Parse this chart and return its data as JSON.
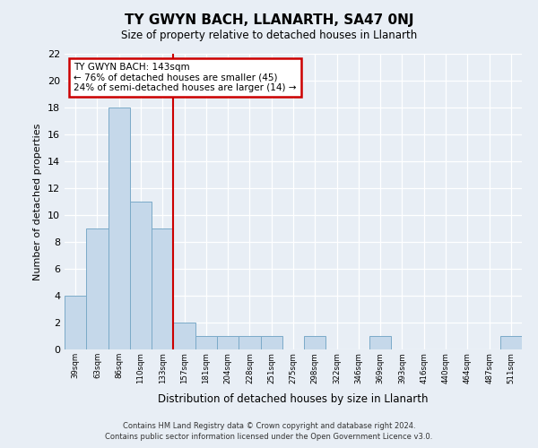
{
  "title": "TY GWYN BACH, LLANARTH, SA47 0NJ",
  "subtitle": "Size of property relative to detached houses in Llanarth",
  "xlabel": "Distribution of detached houses by size in Llanarth",
  "ylabel": "Number of detached properties",
  "bar_labels": [
    "39sqm",
    "63sqm",
    "86sqm",
    "110sqm",
    "133sqm",
    "157sqm",
    "181sqm",
    "204sqm",
    "228sqm",
    "251sqm",
    "275sqm",
    "298sqm",
    "322sqm",
    "346sqm",
    "369sqm",
    "393sqm",
    "416sqm",
    "440sqm",
    "464sqm",
    "487sqm",
    "511sqm"
  ],
  "bar_values": [
    4,
    9,
    18,
    11,
    9,
    2,
    1,
    1,
    1,
    1,
    0,
    1,
    0,
    0,
    1,
    0,
    0,
    0,
    0,
    0,
    1
  ],
  "bar_color": "#c5d8ea",
  "bar_edgecolor": "#7baac8",
  "annotation_line1": "TY GWYN BACH: 143sqm",
  "annotation_line2": "← 76% of detached houses are smaller (45)",
  "annotation_line3": "24% of semi-detached houses are larger (14) →",
  "annotation_box_facecolor": "#ffffff",
  "annotation_box_edgecolor": "#cc0000",
  "vline_color": "#cc0000",
  "ylim": [
    0,
    22
  ],
  "yticks": [
    0,
    2,
    4,
    6,
    8,
    10,
    12,
    14,
    16,
    18,
    20,
    22
  ],
  "footer_line1": "Contains HM Land Registry data © Crown copyright and database right 2024.",
  "footer_line2": "Contains public sector information licensed under the Open Government Licence v3.0.",
  "bg_color": "#e8eef5",
  "axes_bg_color": "#e8eef5"
}
